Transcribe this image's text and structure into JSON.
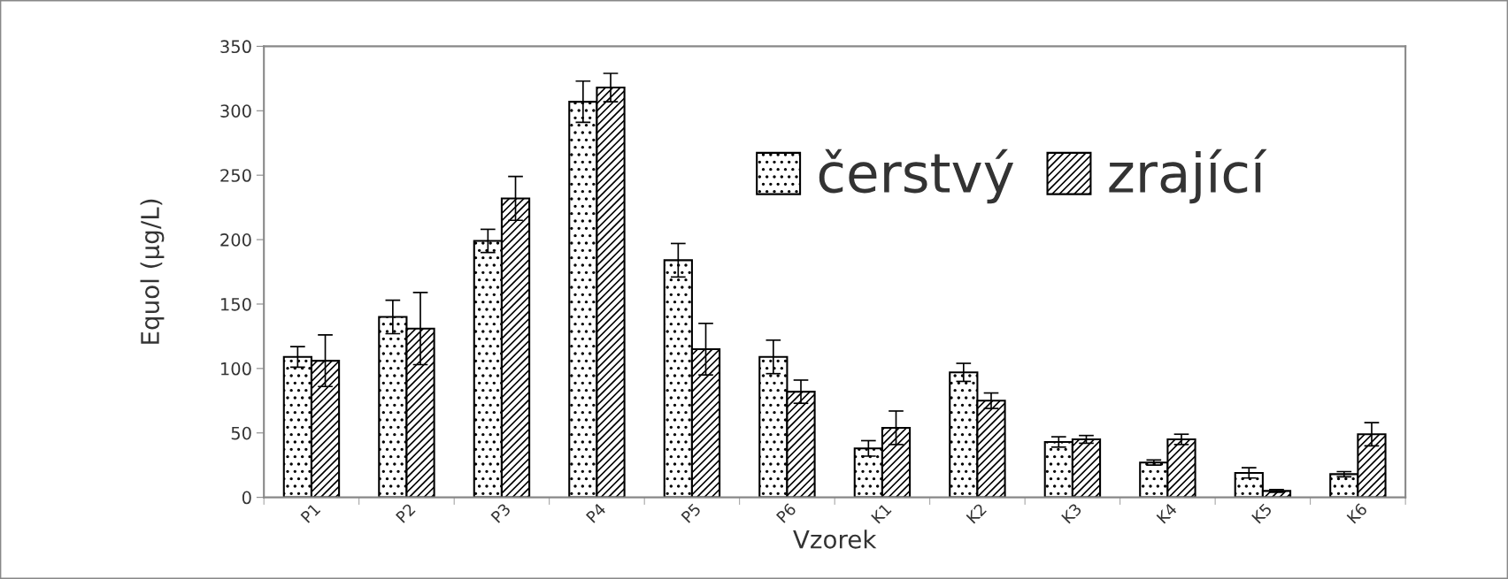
{
  "chart_data": {
    "type": "bar",
    "xlabel": "Vzorek",
    "ylabel": "Equol (µg/L)",
    "categories": [
      "P1",
      "P2",
      "P3",
      "P4",
      "P5",
      "P6",
      "K1",
      "K2",
      "K3",
      "K4",
      "K5",
      "K6"
    ],
    "series": [
      {
        "name": "čerstvý",
        "color": "#000000",
        "values": [
          109,
          140,
          199,
          307,
          184,
          109,
          38,
          97,
          43,
          27,
          19,
          18
        ],
        "errors": [
          8,
          13,
          9,
          16,
          13,
          13,
          6,
          7,
          4,
          2,
          4,
          2
        ]
      },
      {
        "name": "zrající",
        "color": "#000000",
        "values": [
          106,
          131,
          232,
          318,
          115,
          82,
          54,
          75,
          45,
          45,
          5,
          49
        ],
        "errors": [
          20,
          28,
          17,
          11,
          20,
          9,
          13,
          6,
          3,
          4,
          1,
          9
        ]
      }
    ],
    "ylim": [
      0,
      350
    ],
    "yticks": [
      0,
      50,
      100,
      150,
      200,
      250,
      300,
      350
    ],
    "grid": false,
    "legend": "top right"
  }
}
